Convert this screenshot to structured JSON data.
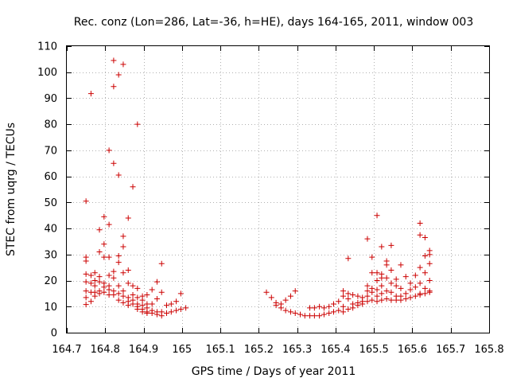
{
  "chart_data": {
    "type": "scatter",
    "title": "Rec. conz (Lon=286, Lat=-36, h=HE), days 164-165, 2011, window 003",
    "xlabel": "GPS time / Days of year 2011",
    "ylabel": "STEC from uqrg / TECUs",
    "xlim": [
      164.7,
      165.8
    ],
    "ylim": [
      0,
      110
    ],
    "xticks": [
      "164.7",
      "164.8",
      "164.9",
      "165",
      "165.1",
      "165.2",
      "165.3",
      "165.4",
      "165.5",
      "165.6",
      "165.7",
      "165.8"
    ],
    "yticks": [
      "0",
      "10",
      "20",
      "30",
      "40",
      "50",
      "60",
      "70",
      "80",
      "90",
      "100",
      "110"
    ],
    "grid": true,
    "marker": "+",
    "color": "#cc0000",
    "points": [
      [
        164.75,
        50.5
      ],
      [
        164.75,
        29.0
      ],
      [
        164.75,
        27.5
      ],
      [
        164.75,
        22.5
      ],
      [
        164.75,
        19.5
      ],
      [
        164.75,
        16.0
      ],
      [
        164.75,
        13.5
      ],
      [
        164.75,
        10.8
      ],
      [
        164.763,
        91.8
      ],
      [
        164.763,
        22.0
      ],
      [
        164.763,
        19.0
      ],
      [
        164.763,
        15.5
      ],
      [
        164.763,
        12.0
      ],
      [
        164.773,
        23.0
      ],
      [
        164.773,
        20.0
      ],
      [
        164.773,
        18.0
      ],
      [
        164.773,
        15.5
      ],
      [
        164.773,
        14.0
      ],
      [
        164.785,
        39.5
      ],
      [
        164.785,
        31.0
      ],
      [
        164.785,
        21.5
      ],
      [
        164.785,
        19.5
      ],
      [
        164.785,
        16.0
      ],
      [
        164.785,
        15.0
      ],
      [
        164.797,
        44.5
      ],
      [
        164.797,
        34.0
      ],
      [
        164.797,
        29.0
      ],
      [
        164.797,
        19.0
      ],
      [
        164.797,
        17.5
      ],
      [
        164.797,
        15.5
      ],
      [
        164.81,
        70.0
      ],
      [
        164.81,
        41.5
      ],
      [
        164.81,
        29.0
      ],
      [
        164.81,
        22.0
      ],
      [
        164.81,
        18.0
      ],
      [
        164.81,
        16.5
      ],
      [
        164.81,
        14.5
      ],
      [
        164.822,
        104.5
      ],
      [
        164.822,
        94.5
      ],
      [
        164.822,
        65.0
      ],
      [
        164.822,
        23.5
      ],
      [
        164.822,
        21.0
      ],
      [
        164.822,
        16.0
      ],
      [
        164.822,
        14.5
      ],
      [
        164.835,
        99.0
      ],
      [
        164.835,
        60.5
      ],
      [
        164.835,
        29.5
      ],
      [
        164.835,
        27.0
      ],
      [
        164.835,
        18.0
      ],
      [
        164.835,
        15.0
      ],
      [
        164.835,
        12.5
      ],
      [
        164.847,
        103.0
      ],
      [
        164.847,
        37.0
      ],
      [
        164.847,
        33.0
      ],
      [
        164.847,
        23.0
      ],
      [
        164.847,
        16.0
      ],
      [
        164.847,
        14.0
      ],
      [
        164.847,
        11.5
      ],
      [
        164.86,
        44.0
      ],
      [
        164.86,
        24.0
      ],
      [
        164.86,
        19.0
      ],
      [
        164.86,
        13.5
      ],
      [
        164.86,
        12.0
      ],
      [
        164.86,
        10.5
      ],
      [
        164.872,
        56.0
      ],
      [
        164.872,
        18.0
      ],
      [
        164.872,
        14.5
      ],
      [
        164.872,
        12.5
      ],
      [
        164.872,
        11.0
      ],
      [
        164.884,
        80.0
      ],
      [
        164.884,
        17.0
      ],
      [
        164.884,
        13.5
      ],
      [
        164.884,
        11.0
      ],
      [
        164.884,
        10.0
      ],
      [
        164.884,
        9.0
      ],
      [
        164.897,
        14.0
      ],
      [
        164.897,
        12.5
      ],
      [
        164.897,
        10.5
      ],
      [
        164.897,
        9.0
      ],
      [
        164.897,
        8.0
      ],
      [
        164.909,
        14.5
      ],
      [
        164.909,
        11.0
      ],
      [
        164.909,
        9.5
      ],
      [
        164.909,
        8.0
      ],
      [
        164.909,
        7.5
      ],
      [
        164.922,
        16.5
      ],
      [
        164.922,
        11.0
      ],
      [
        164.922,
        8.5
      ],
      [
        164.922,
        7.5
      ],
      [
        164.935,
        19.5
      ],
      [
        164.935,
        13.0
      ],
      [
        164.935,
        8.0
      ],
      [
        164.935,
        7.0
      ],
      [
        164.947,
        26.5
      ],
      [
        164.947,
        15.5
      ],
      [
        164.947,
        8.0
      ],
      [
        164.947,
        6.5
      ],
      [
        164.96,
        10.5
      ],
      [
        164.96,
        7.5
      ],
      [
        164.972,
        11.0
      ],
      [
        164.972,
        8.0
      ],
      [
        164.985,
        12.0
      ],
      [
        164.985,
        8.5
      ],
      [
        164.997,
        15.0
      ],
      [
        164.997,
        9.0
      ],
      [
        165.01,
        9.5
      ],
      [
        165.22,
        15.5
      ],
      [
        165.233,
        13.5
      ],
      [
        165.245,
        11.5
      ],
      [
        165.245,
        10.5
      ],
      [
        165.258,
        11.0
      ],
      [
        165.258,
        9.5
      ],
      [
        165.27,
        12.5
      ],
      [
        165.27,
        8.5
      ],
      [
        165.283,
        14.0
      ],
      [
        165.283,
        8.0
      ],
      [
        165.295,
        16.0
      ],
      [
        165.295,
        7.5
      ],
      [
        165.308,
        7.0
      ],
      [
        165.32,
        6.5
      ],
      [
        165.333,
        9.5
      ],
      [
        165.333,
        6.5
      ],
      [
        165.345,
        9.5
      ],
      [
        165.345,
        6.5
      ],
      [
        165.358,
        10.0
      ],
      [
        165.358,
        6.5
      ],
      [
        165.37,
        9.5
      ],
      [
        165.37,
        7.0
      ],
      [
        165.383,
        10.0
      ],
      [
        165.383,
        7.5
      ],
      [
        165.395,
        11.0
      ],
      [
        165.395,
        8.0
      ],
      [
        165.408,
        12.0
      ],
      [
        165.408,
        8.5
      ],
      [
        165.42,
        16.0
      ],
      [
        165.42,
        14.0
      ],
      [
        165.42,
        10.0
      ],
      [
        165.42,
        8.0
      ],
      [
        165.433,
        28.5
      ],
      [
        165.433,
        15.0
      ],
      [
        165.433,
        13.0
      ],
      [
        165.433,
        9.0
      ],
      [
        165.445,
        14.5
      ],
      [
        165.445,
        11.0
      ],
      [
        165.445,
        9.5
      ],
      [
        165.458,
        14.0
      ],
      [
        165.458,
        11.5
      ],
      [
        165.458,
        10.5
      ],
      [
        165.47,
        13.5
      ],
      [
        165.47,
        12.0
      ],
      [
        165.47,
        11.0
      ],
      [
        165.483,
        36.0
      ],
      [
        165.483,
        18.0
      ],
      [
        165.483,
        16.0
      ],
      [
        165.483,
        14.0
      ],
      [
        165.483,
        12.0
      ],
      [
        165.495,
        29.0
      ],
      [
        165.495,
        23.0
      ],
      [
        165.495,
        17.0
      ],
      [
        165.495,
        15.5
      ],
      [
        165.495,
        12.5
      ],
      [
        165.508,
        45.0
      ],
      [
        165.508,
        23.0
      ],
      [
        165.508,
        20.0
      ],
      [
        165.508,
        16.5
      ],
      [
        165.508,
        14.0
      ],
      [
        165.508,
        12.0
      ],
      [
        165.52,
        33.0
      ],
      [
        165.52,
        22.5
      ],
      [
        165.52,
        21.0
      ],
      [
        165.52,
        18.0
      ],
      [
        165.52,
        15.0
      ],
      [
        165.52,
        12.5
      ],
      [
        165.533,
        27.5
      ],
      [
        165.533,
        26.0
      ],
      [
        165.533,
        21.0
      ],
      [
        165.533,
        16.0
      ],
      [
        165.533,
        13.0
      ],
      [
        165.545,
        33.5
      ],
      [
        165.545,
        24.0
      ],
      [
        165.545,
        19.0
      ],
      [
        165.545,
        15.5
      ],
      [
        165.545,
        12.5
      ],
      [
        165.558,
        20.5
      ],
      [
        165.558,
        18.0
      ],
      [
        165.558,
        14.0
      ],
      [
        165.558,
        12.5
      ],
      [
        165.57,
        26.0
      ],
      [
        165.57,
        17.0
      ],
      [
        165.57,
        14.0
      ],
      [
        165.57,
        12.5
      ],
      [
        165.583,
        21.5
      ],
      [
        165.583,
        15.0
      ],
      [
        165.583,
        13.0
      ],
      [
        165.595,
        19.0
      ],
      [
        165.595,
        16.5
      ],
      [
        165.595,
        13.5
      ],
      [
        165.608,
        22.0
      ],
      [
        165.608,
        17.5
      ],
      [
        165.608,
        14.0
      ],
      [
        165.62,
        42.0
      ],
      [
        165.62,
        37.5
      ],
      [
        165.62,
        25.0
      ],
      [
        165.62,
        19.0
      ],
      [
        165.62,
        15.0
      ],
      [
        165.62,
        14.5
      ],
      [
        165.633,
        36.5
      ],
      [
        165.633,
        29.5
      ],
      [
        165.633,
        23.0
      ],
      [
        165.633,
        17.0
      ],
      [
        165.633,
        15.0
      ],
      [
        165.645,
        31.5
      ],
      [
        165.645,
        30.0
      ],
      [
        165.645,
        26.5
      ],
      [
        165.645,
        20.0
      ],
      [
        165.645,
        16.0
      ],
      [
        165.645,
        15.5
      ]
    ]
  }
}
